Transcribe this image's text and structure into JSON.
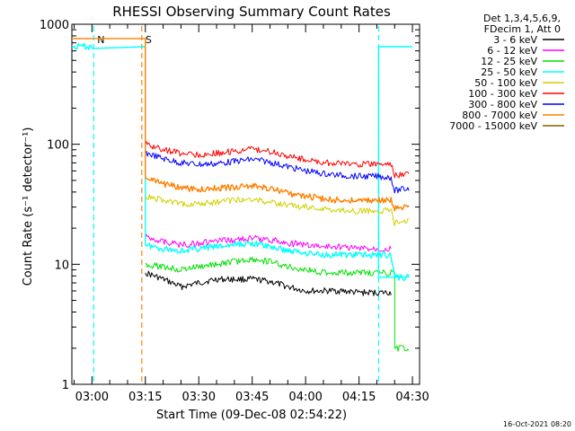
{
  "chart_data": {
    "type": "line",
    "title": "RHESSI Observing Summary Count Rates",
    "xlabel": "Start Time (09-Dec-08 02:54:22)",
    "ylabel": "Count Rate (s⁻¹ detector⁻¹)",
    "y_scale": "log",
    "ylim": [
      1,
      1000
    ],
    "xlim": [
      "02:54:22",
      "04:32:00"
    ],
    "y_ticks": [
      {
        "value": 1,
        "label": "1"
      },
      {
        "value": 10,
        "label": "10"
      },
      {
        "value": 100,
        "label": "100"
      },
      {
        "value": 1000,
        "label": "1000"
      }
    ],
    "x_ticks": [
      "03:00",
      "03:15",
      "03:30",
      "03:45",
      "04:00",
      "04:15",
      "04:30"
    ],
    "legend_header": [
      "Det 1,3,4,5,6,9,",
      "FDecim 1, Att 0"
    ],
    "legend_placement": "right",
    "series": [
      {
        "name": "3 - 6 keV",
        "color": "#000000",
        "points": [
          [
            "03:15",
            8.5
          ],
          [
            "03:20",
            7.5
          ],
          [
            "03:25",
            6.5
          ],
          [
            "03:30",
            7.0
          ],
          [
            "03:35",
            7.5
          ],
          [
            "03:40",
            7.5
          ],
          [
            "03:45",
            7.5
          ],
          [
            "03:50",
            7.2
          ],
          [
            "03:55",
            6.5
          ],
          [
            "04:00",
            6.0
          ],
          [
            "04:05",
            6.0
          ],
          [
            "04:10",
            6.0
          ],
          [
            "04:15",
            5.8
          ],
          [
            "04:20",
            5.8
          ],
          [
            "04:24",
            5.8
          ]
        ]
      },
      {
        "name": "6 - 12 keV",
        "color": "#ff00ff",
        "points": [
          [
            "03:15",
            17
          ],
          [
            "03:20",
            15.5
          ],
          [
            "03:25",
            14.5
          ],
          [
            "03:30",
            15
          ],
          [
            "03:35",
            15.5
          ],
          [
            "03:40",
            16
          ],
          [
            "03:45",
            16.5
          ],
          [
            "03:50",
            16
          ],
          [
            "03:55",
            15
          ],
          [
            "04:00",
            14.5
          ],
          [
            "04:05",
            14
          ],
          [
            "04:10",
            14
          ],
          [
            "04:15",
            13.5
          ],
          [
            "04:20",
            13.5
          ],
          [
            "04:24",
            13.5
          ]
        ]
      },
      {
        "name": "12 - 25 keV",
        "color": "#00e000",
        "points": [
          [
            "03:15",
            10
          ],
          [
            "03:20",
            9.5
          ],
          [
            "03:25",
            9
          ],
          [
            "03:30",
            9.5
          ],
          [
            "03:35",
            10
          ],
          [
            "03:40",
            10.5
          ],
          [
            "03:45",
            11
          ],
          [
            "03:50",
            10.5
          ],
          [
            "03:55",
            9.5
          ],
          [
            "04:00",
            9
          ],
          [
            "04:05",
            8.5
          ],
          [
            "04:10",
            8.5
          ],
          [
            "04:15",
            8.5
          ],
          [
            "04:20",
            8.5
          ],
          [
            "04:24",
            8.5
          ],
          [
            "04:25",
            2.0
          ],
          [
            "04:26",
            2.0
          ],
          [
            "04:29",
            2.0
          ]
        ]
      },
      {
        "name": "25 - 50 keV",
        "color": "#00ffff",
        "points": [
          [
            "02:54:22",
            650
          ],
          [
            "03:00",
            650
          ],
          [
            "03:00:30",
            650
          ],
          [
            "03:15",
            14.5
          ],
          [
            "03:20",
            13.5
          ],
          [
            "03:25",
            13
          ],
          [
            "03:30",
            13.5
          ],
          [
            "03:35",
            14
          ],
          [
            "03:40",
            14.5
          ],
          [
            "03:45",
            15
          ],
          [
            "03:50",
            14
          ],
          [
            "03:55",
            13
          ],
          [
            "04:00",
            12.5
          ],
          [
            "04:05",
            12
          ],
          [
            "04:10",
            12
          ],
          [
            "04:15",
            12
          ],
          [
            "04:20",
            12
          ],
          [
            "04:24",
            12
          ],
          [
            "04:25",
            7.8
          ],
          [
            "04:29",
            7.8
          ],
          [
            "04:20:30",
            650
          ],
          [
            "04:30",
            650
          ]
        ]
      },
      {
        "name": "50 - 100 keV",
        "color": "#d0d000",
        "points": [
          [
            "03:15",
            37
          ],
          [
            "03:20",
            34
          ],
          [
            "03:25",
            32
          ],
          [
            "03:30",
            32
          ],
          [
            "03:35",
            33
          ],
          [
            "03:40",
            34
          ],
          [
            "03:45",
            35
          ],
          [
            "03:50",
            33
          ],
          [
            "03:55",
            31
          ],
          [
            "04:00",
            30
          ],
          [
            "04:05",
            28.5
          ],
          [
            "04:10",
            28
          ],
          [
            "04:15",
            28
          ],
          [
            "04:20",
            28
          ],
          [
            "04:24",
            28
          ],
          [
            "04:25",
            22
          ],
          [
            "04:29",
            23
          ]
        ]
      },
      {
        "name": "100 - 300 keV",
        "color": "#ff0000",
        "points": [
          [
            "03:15",
            100
          ],
          [
            "03:20",
            90
          ],
          [
            "03:25",
            84
          ],
          [
            "03:30",
            82
          ],
          [
            "03:35",
            84
          ],
          [
            "03:40",
            88
          ],
          [
            "03:45",
            91
          ],
          [
            "03:50",
            87
          ],
          [
            "03:55",
            80
          ],
          [
            "04:00",
            74
          ],
          [
            "04:05",
            70
          ],
          [
            "04:10",
            69
          ],
          [
            "04:15",
            68
          ],
          [
            "04:20",
            68
          ],
          [
            "04:24",
            68
          ],
          [
            "04:25",
            55
          ],
          [
            "04:29",
            57
          ]
        ]
      },
      {
        "name": "300 - 800 keV",
        "color": "#0000ff",
        "points": [
          [
            "03:15",
            85
          ],
          [
            "03:20",
            76
          ],
          [
            "03:25",
            70
          ],
          [
            "03:30",
            68
          ],
          [
            "03:35",
            69
          ],
          [
            "03:40",
            72
          ],
          [
            "03:45",
            75
          ],
          [
            "03:50",
            71
          ],
          [
            "03:55",
            65
          ],
          [
            "04:00",
            60
          ],
          [
            "04:05",
            57
          ],
          [
            "04:10",
            55
          ],
          [
            "04:15",
            54
          ],
          [
            "04:20",
            54
          ],
          [
            "04:24",
            53
          ],
          [
            "04:25",
            41
          ],
          [
            "04:29",
            43
          ]
        ]
      },
      {
        "name": "800 - 7000 keV",
        "color": "#ff8000",
        "points": [
          [
            "02:54:22",
            760
          ],
          [
            "03:14",
            760
          ],
          [
            "03:15",
            52
          ],
          [
            "03:20",
            47
          ],
          [
            "03:25",
            43
          ],
          [
            "03:30",
            42
          ],
          [
            "03:35",
            43
          ],
          [
            "03:40",
            44
          ],
          [
            "03:45",
            45
          ],
          [
            "03:50",
            43
          ],
          [
            "03:55",
            39
          ],
          [
            "04:00",
            37
          ],
          [
            "04:05",
            35
          ],
          [
            "04:10",
            34
          ],
          [
            "04:15",
            34
          ],
          [
            "04:20",
            34
          ],
          [
            "04:24",
            34
          ],
          [
            "04:25",
            29
          ],
          [
            "04:29",
            30
          ]
        ]
      },
      {
        "name": "7000 - 15000 keV",
        "color": "#806000",
        "points": []
      }
    ],
    "markers": [
      {
        "label": "N",
        "color": "#00ffff",
        "x_start": "03:00:30",
        "x_end": "04:20:30"
      },
      {
        "label": "S",
        "color": "#ff8000",
        "x_start": "03:14",
        "x_end": ""
      }
    ]
  },
  "footer_timestamp": "16-Oct-2021 08:20"
}
